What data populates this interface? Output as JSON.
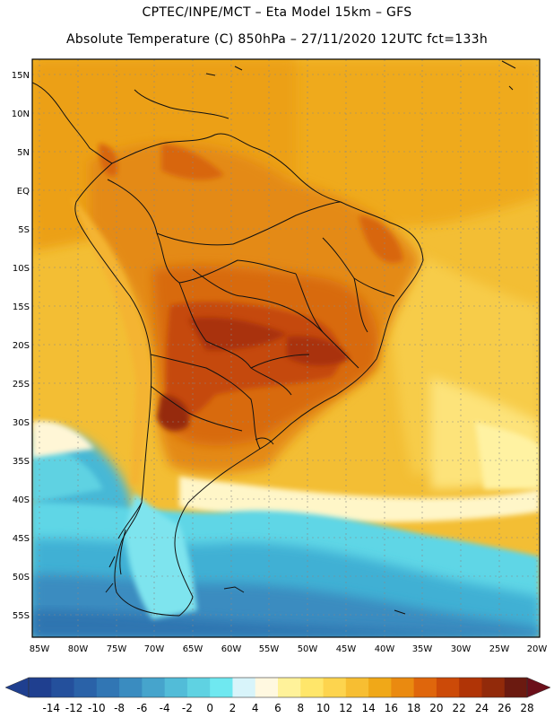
{
  "header": {
    "line1": "CPTEC/INPE/MCT –  Eta Model 15km – GFS",
    "line2": "Absolute Temperature (C) 850hPa – 27/11/2020 12UTC fct=133h"
  },
  "latitude_labels": [
    "15N",
    "10N",
    "5N",
    "EQ",
    "5S",
    "10S",
    "15S",
    "20S",
    "25S",
    "30S",
    "35S",
    "40S",
    "45S",
    "50S",
    "55S"
  ],
  "longitude_labels": [
    "85W",
    "80W",
    "75W",
    "70W",
    "65W",
    "60W",
    "55W",
    "50W",
    "45W",
    "40W",
    "35W",
    "30W",
    "25W",
    "20W"
  ],
  "colorbar": {
    "ticks": [
      "-14",
      "-12",
      "-10",
      "-8",
      "-6",
      "-4",
      "-2",
      "0",
      "2",
      "4",
      "6",
      "8",
      "10",
      "12",
      "14",
      "16",
      "18",
      "20",
      "22",
      "24",
      "26",
      "28"
    ],
    "colors": [
      "#1f3f8f",
      "#24509c",
      "#2a62a8",
      "#3176b4",
      "#3a8cc0",
      "#46a4cc",
      "#52bcd8",
      "#5fd2e2",
      "#6fe8f0",
      "#d8f4fa",
      "#fff8e0",
      "#fff29a",
      "#ffe66a",
      "#fdd44e",
      "#f7be32",
      "#f0a818",
      "#ea8a10",
      "#df660c",
      "#cc4a08",
      "#b03406",
      "#922a0a",
      "#6b1a10"
    ]
  }
}
